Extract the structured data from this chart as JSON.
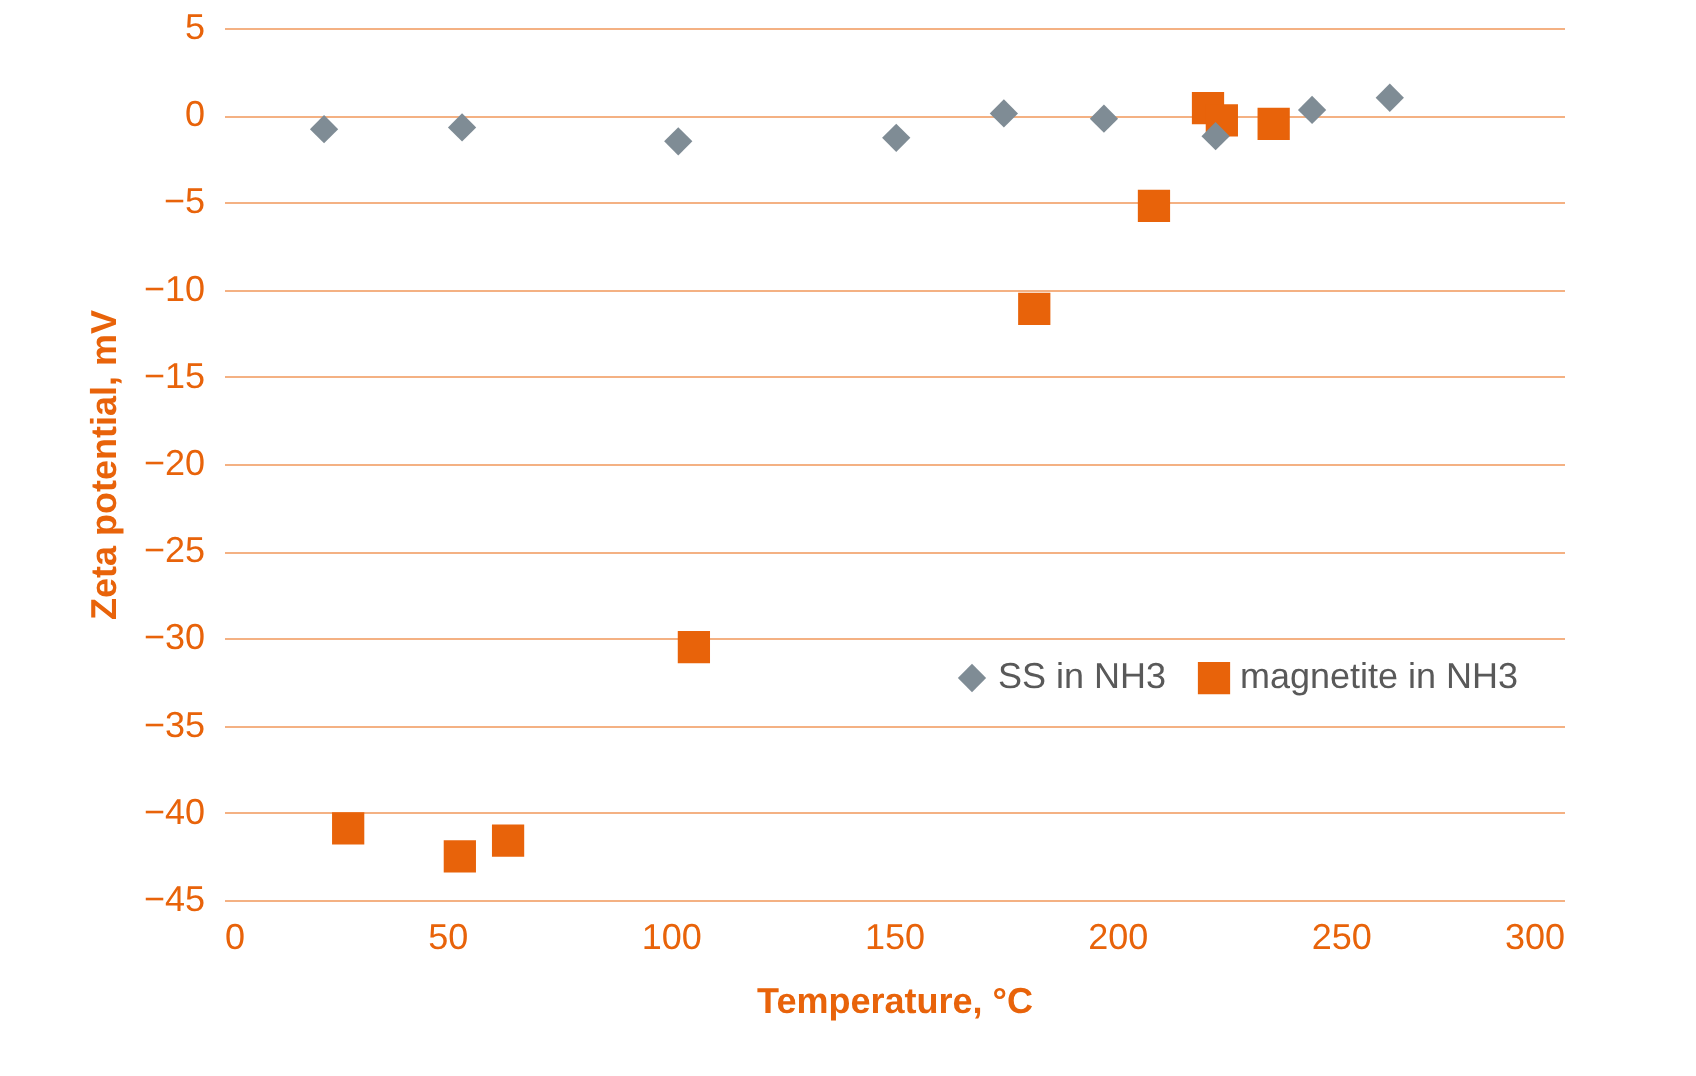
{
  "chart_data": {
    "type": "scatter",
    "xlabel": "Temperature, °C",
    "ylabel": "Zeta potential, mV",
    "xlim": [
      0,
      300
    ],
    "xticks": [
      0,
      50,
      100,
      150,
      200,
      250,
      300
    ],
    "ylim": [
      -45,
      5
    ],
    "yticks": [
      -45,
      -40,
      -35,
      -30,
      -25,
      -20,
      -15,
      -10,
      -5,
      0,
      5
    ],
    "grid": "y",
    "legend": "bottom right",
    "series": [
      {
        "name": "SS in NH3",
        "color": "#7f8c95",
        "marker": "diamond",
        "x": [
          22.4,
          53.3,
          101.7,
          150.5,
          174.6,
          197,
          222,
          243.6,
          261
        ],
        "values": [
          -0.8,
          -0.7,
          -1.5,
          -1.3,
          0.1,
          -0.2,
          -1.2,
          0.3,
          1.0
        ]
      },
      {
        "name": "magnetite in NH3",
        "color": "#e8630a",
        "marker": "square",
        "x": [
          27.8,
          52.8,
          63.6,
          105.2,
          181.4,
          208.2,
          220.3,
          223.4,
          235
        ],
        "values": [
          -40.9,
          -42.5,
          -41.6,
          -30.5,
          -11.1,
          -5.2,
          0.4,
          -0.3,
          -0.5
        ]
      }
    ]
  }
}
